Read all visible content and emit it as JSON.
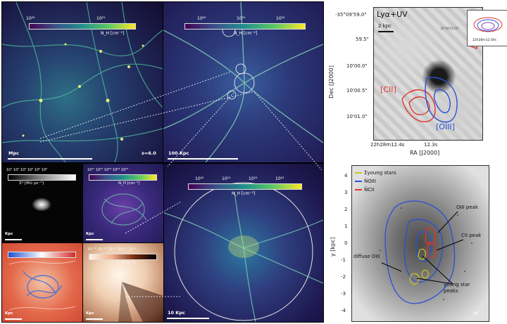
{
  "sim": {
    "p1": {
      "cb_min": "10²⁰",
      "cb_max": "10²¹",
      "cb_label": "N_H [cm⁻²]",
      "scale": "Mpc",
      "z": "z=6.0"
    },
    "p2": {
      "cb_ticks": [
        "10²⁰",
        "10²¹",
        "10²²"
      ],
      "cb_label": "N_H [cm⁻²]",
      "scale": "100 Kpc"
    },
    "p3": {
      "cb_ticks": [
        "10²⁰",
        "10²¹",
        "10²²",
        "10²³"
      ],
      "cb_label": "N_H [cm⁻²]",
      "scale": "10 Kpc"
    },
    "s1": {
      "cb_ticks": "10¹ 10² 10³ 10⁴ 10⁵ 10⁶",
      "cb_label": "Σ* [M⊙ pc⁻²]",
      "scale": "Kpc"
    },
    "s2": {
      "cb_ticks": "10²¹ 10²² 10²³ 10²⁴ 10²⁵",
      "cb_label": "N_H [cm⁻²]",
      "scale": "Kpc"
    },
    "s3": {
      "cb_label": "",
      "scale": "Kpc"
    },
    "s4": {
      "cb_ticks": "10⁻¹³ 10⁻¹² 10⁻¹¹ 10⁻¹⁰ 10⁻⁹",
      "cb_label": "Γ_HI [s⁻¹]",
      "scale": "Kpc"
    }
  },
  "obs": {
    "title": "Lyα+UV",
    "inset_coord": "-35°09'53.50\"",
    "inset_xlabel": "22h28m12.00s",
    "scale": "2 kpc",
    "label_cii": "[CII]",
    "label_oiii": "[OIII]",
    "ylabel": "Dec [J2000]",
    "xlabel": "RA [J2000]",
    "yticks": [
      "-35°09'59.0\"",
      "59.5\"",
      "10'00.0\"",
      "10'00.5\"",
      "10'01.0\""
    ],
    "xticks": [
      "22h28m12.4s",
      "12.3s"
    ],
    "colors": {
      "cii": "#e0352b",
      "oiii": "#2a4fd6"
    }
  },
  "model": {
    "legend": [
      "Σ̃young stars",
      "ÑOIII",
      "ÑCII"
    ],
    "legend_colors": [
      "#c8c81e",
      "#2a4fd6",
      "#e0352b"
    ],
    "ylabel": "y [kpc]",
    "yticks": [
      "4",
      "3",
      "2",
      "1",
      "0",
      "-1",
      "-2",
      "-3",
      "-4"
    ],
    "annotations": {
      "oiii_peak": "OIII peak",
      "cii_peak": "CII peak",
      "diffuse": "diffuse OIII",
      "young": "young star\npeaks",
      "hi": "HI"
    }
  }
}
